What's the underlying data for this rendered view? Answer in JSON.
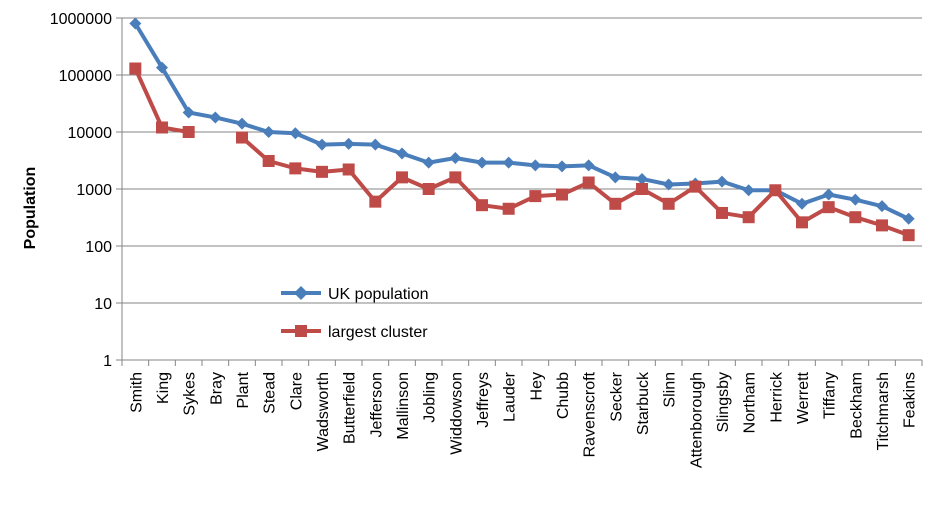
{
  "colors": {
    "uk_population": "#4A7EBB",
    "largest_cluster": "#BE4B48",
    "grid": "#868686",
    "axis": "#868686"
  },
  "chart_data": {
    "type": "line",
    "title": "",
    "xlabel": "",
    "ylabel": "Population",
    "yscale": "log",
    "ylim": [
      1,
      1000000
    ],
    "yticks": [
      "1",
      "10",
      "100",
      "1000",
      "10000",
      "100000",
      "1000000"
    ],
    "grid": "horizontal",
    "legend_placement": "bottom-center",
    "categories": [
      "Smith",
      "King",
      "Sykes",
      "Bray",
      "Plant",
      "Stead",
      "Clare",
      "Wadsworth",
      "Butterfield",
      "Jefferson",
      "Mallinson",
      "Jobling",
      "Widdowson",
      "Jeffreys",
      "Lauder",
      "Hey",
      "Chubb",
      "Ravenscroft",
      "Secker",
      "Starbuck",
      "Slinn",
      "Attenborough",
      "Slingsby",
      "Northam",
      "Herrick",
      "Werrett",
      "Tiffany",
      "Beckham",
      "Titchmarsh",
      "Feakins"
    ],
    "series": [
      {
        "name": "UK population",
        "color": "#4A7EBB",
        "marker": "diamond",
        "values": [
          800000,
          135000,
          22000,
          18000,
          14000,
          10000,
          9500,
          6000,
          6200,
          6000,
          4200,
          2900,
          3500,
          2900,
          2900,
          2600,
          2500,
          2600,
          1600,
          1500,
          1200,
          1250,
          1350,
          950,
          950,
          550,
          800,
          650,
          500,
          300
        ]
      },
      {
        "name": "largest cluster",
        "color": "#BE4B48",
        "marker": "square",
        "values": [
          130000,
          12000,
          10000,
          null,
          8000,
          3100,
          2300,
          2000,
          2200,
          600,
          1600,
          1000,
          1600,
          520,
          450,
          750,
          800,
          1300,
          550,
          1000,
          550,
          1100,
          380,
          320,
          950,
          260,
          480,
          320,
          230,
          155
        ]
      }
    ]
  }
}
